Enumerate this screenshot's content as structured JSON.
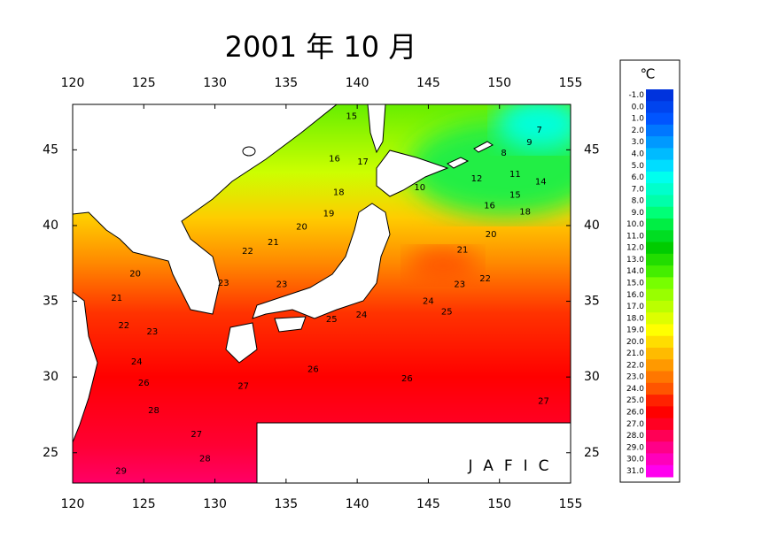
{
  "title": "2001 年 10 月",
  "credit": "JAFIC",
  "map": {
    "xlim": [
      120,
      155
    ],
    "ylim": [
      23,
      48
    ],
    "xticks": [
      120,
      125,
      130,
      135,
      140,
      145,
      150,
      155
    ],
    "yticks": [
      25,
      30,
      35,
      40,
      45
    ],
    "contour_labels": [
      {
        "value": 15,
        "lon": 139.6,
        "lat": 47.2
      },
      {
        "value": 16,
        "lon": 138.4,
        "lat": 44.4
      },
      {
        "value": 17,
        "lon": 140.4,
        "lat": 44.2
      },
      {
        "value": 18,
        "lon": 138.7,
        "lat": 42.2
      },
      {
        "value": 19,
        "lon": 138.0,
        "lat": 40.8
      },
      {
        "value": 20,
        "lon": 136.1,
        "lat": 39.9
      },
      {
        "value": 21,
        "lon": 134.1,
        "lat": 38.9
      },
      {
        "value": 22,
        "lon": 132.3,
        "lat": 38.3
      },
      {
        "value": 23,
        "lon": 130.6,
        "lat": 36.2
      },
      {
        "value": 23,
        "lon": 134.7,
        "lat": 36.1
      },
      {
        "value": 20,
        "lon": 124.4,
        "lat": 36.8
      },
      {
        "value": 21,
        "lon": 123.1,
        "lat": 35.2
      },
      {
        "value": 22,
        "lon": 123.6,
        "lat": 33.4
      },
      {
        "value": 23,
        "lon": 125.6,
        "lat": 33.0
      },
      {
        "value": 24,
        "lon": 124.5,
        "lat": 31.0
      },
      {
        "value": 25,
        "lon": 138.2,
        "lat": 33.8
      },
      {
        "value": 24,
        "lon": 140.3,
        "lat": 34.1
      },
      {
        "value": 26,
        "lon": 125.0,
        "lat": 29.6
      },
      {
        "value": 26,
        "lon": 136.9,
        "lat": 30.5
      },
      {
        "value": 26,
        "lon": 143.5,
        "lat": 29.9
      },
      {
        "value": 27,
        "lon": 132.0,
        "lat": 29.4
      },
      {
        "value": 28,
        "lon": 125.7,
        "lat": 27.8
      },
      {
        "value": 28,
        "lon": 129.3,
        "lat": 24.6
      },
      {
        "value": 27,
        "lon": 128.7,
        "lat": 26.2
      },
      {
        "value": 29,
        "lon": 123.4,
        "lat": 23.8
      },
      {
        "value": 27,
        "lon": 153.1,
        "lat": 28.4
      },
      {
        "value": 24,
        "lon": 145.0,
        "lat": 35.0
      },
      {
        "value": 25,
        "lon": 146.3,
        "lat": 34.3
      },
      {
        "value": 23,
        "lon": 147.2,
        "lat": 36.1
      },
      {
        "value": 22,
        "lon": 149.0,
        "lat": 36.5
      },
      {
        "value": 20,
        "lon": 149.4,
        "lat": 39.4
      },
      {
        "value": 21,
        "lon": 147.4,
        "lat": 38.4
      },
      {
        "value": 18,
        "lon": 151.8,
        "lat": 40.9
      },
      {
        "value": 16,
        "lon": 149.3,
        "lat": 41.3
      },
      {
        "value": 15,
        "lon": 151.1,
        "lat": 42.0
      },
      {
        "value": 14,
        "lon": 152.9,
        "lat": 42.9
      },
      {
        "value": 12,
        "lon": 148.4,
        "lat": 43.1
      },
      {
        "value": 11,
        "lon": 151.1,
        "lat": 43.4
      },
      {
        "value": 10,
        "lon": 144.4,
        "lat": 42.5
      },
      {
        "value": 8,
        "lon": 150.3,
        "lat": 44.8
      },
      {
        "value": 9,
        "lon": 152.1,
        "lat": 45.5
      },
      {
        "value": 7,
        "lon": 152.8,
        "lat": 46.3
      }
    ]
  },
  "colorbar": {
    "unit": "℃",
    "levels": [
      {
        "value": -1,
        "label": "-1.0"
      },
      {
        "value": 0,
        "label": "0.0"
      },
      {
        "value": 1,
        "label": "1.0"
      },
      {
        "value": 2,
        "label": "2.0"
      },
      {
        "value": 3,
        "label": "3.0"
      },
      {
        "value": 4,
        "label": "4.0"
      },
      {
        "value": 5,
        "label": "5.0"
      },
      {
        "value": 6,
        "label": "6.0"
      },
      {
        "value": 7,
        "label": "7.0"
      },
      {
        "value": 8,
        "label": "8.0"
      },
      {
        "value": 9,
        "label": "9.0"
      },
      {
        "value": 10,
        "label": "10.0"
      },
      {
        "value": 11,
        "label": "11.0"
      },
      {
        "value": 12,
        "label": "12.0"
      },
      {
        "value": 13,
        "label": "13.0"
      },
      {
        "value": 14,
        "label": "14.0"
      },
      {
        "value": 15,
        "label": "15.0"
      },
      {
        "value": 16,
        "label": "16.0"
      },
      {
        "value": 17,
        "label": "17.0"
      },
      {
        "value": 18,
        "label": "18.0"
      },
      {
        "value": 19,
        "label": "19.0"
      },
      {
        "value": 20,
        "label": "20.0"
      },
      {
        "value": 21,
        "label": "21.0"
      },
      {
        "value": 22,
        "label": "22.0"
      },
      {
        "value": 23,
        "label": "23.0"
      },
      {
        "value": 24,
        "label": "24.0"
      },
      {
        "value": 25,
        "label": "25.0"
      },
      {
        "value": 26,
        "label": "26.0"
      },
      {
        "value": 27,
        "label": "27.0"
      },
      {
        "value": 28,
        "label": "28.0"
      },
      {
        "value": 29,
        "label": "29.0"
      },
      {
        "value": 30,
        "label": "30.0"
      },
      {
        "value": 31,
        "label": "31.0"
      }
    ],
    "colors": [
      "#0033dd",
      "#0044ee",
      "#0055ff",
      "#0077ff",
      "#0099ff",
      "#00bbff",
      "#00ddff",
      "#00ffee",
      "#00ffcc",
      "#00ffaa",
      "#00ff77",
      "#00ee44",
      "#00dd22",
      "#00cc00",
      "#22dd00",
      "#44ee00",
      "#77ff00",
      "#99ff00",
      "#bbff00",
      "#ddff00",
      "#ffff00",
      "#ffdd00",
      "#ffbb00",
      "#ff9900",
      "#ff7700",
      "#ff5500",
      "#ff2200",
      "#ff0000",
      "#ff0022",
      "#ff0055",
      "#ff0088",
      "#ff00bb",
      "#ff00ee"
    ]
  }
}
